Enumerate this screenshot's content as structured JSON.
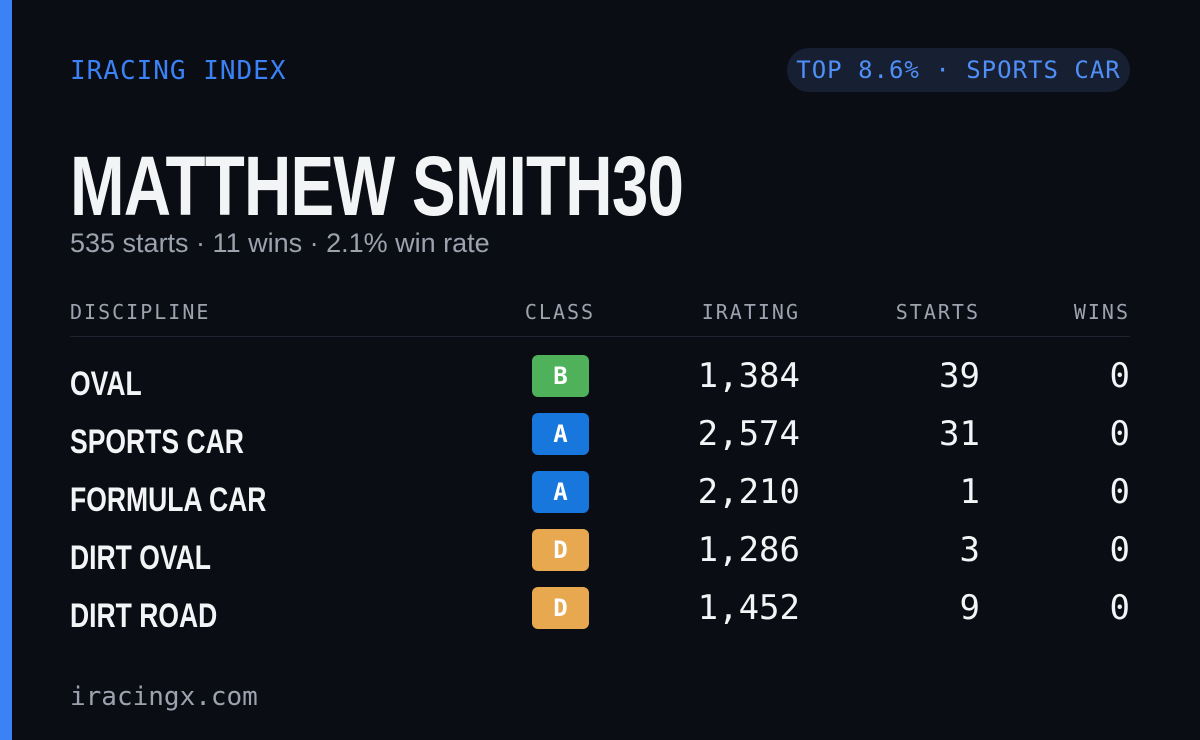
{
  "header": {
    "brand": "IRACING INDEX",
    "badge": "TOP 8.6% · SPORTS CAR"
  },
  "profile": {
    "name": "MATTHEW SMITH30",
    "summary": "535 starts · 11 wins · 2.1% win rate"
  },
  "table": {
    "columns": [
      "DISCIPLINE",
      "CLASS",
      "IRATING",
      "STARTS",
      "WINS"
    ],
    "rows": [
      [
        "OVAL",
        "B",
        "1,384",
        "39",
        "0"
      ],
      [
        "SPORTS CAR",
        "A",
        "2,574",
        "31",
        "0"
      ],
      [
        "FORMULA CAR",
        "A",
        "2,210",
        "1",
        "0"
      ],
      [
        "DIRT OVAL",
        "D",
        "1,286",
        "3",
        "0"
      ],
      [
        "DIRT ROAD",
        "D",
        "1,452",
        "9",
        "0"
      ]
    ]
  },
  "footer": {
    "site": "iracingx.com"
  }
}
